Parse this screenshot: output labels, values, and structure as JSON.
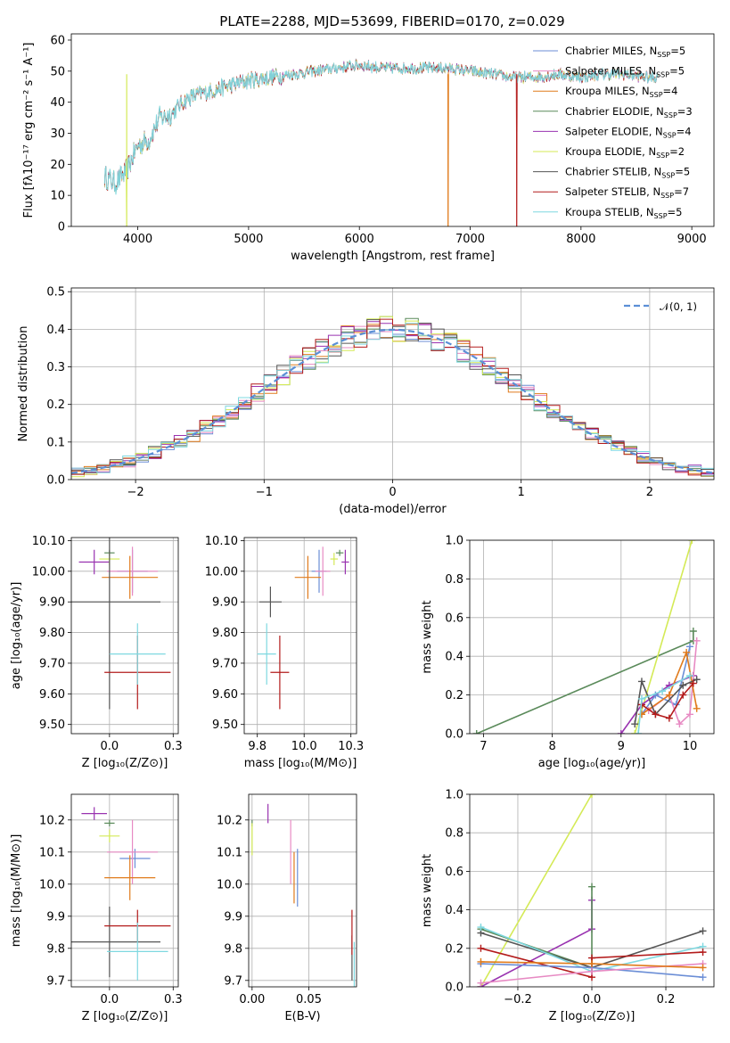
{
  "figure": {
    "title": "PLATE=2288, MJD=53699, FIBERID=0170, z=0.029"
  },
  "colors": {
    "Chabrier MILES": "#6b8ed6",
    "Salpeter MILES": "#e78ac3",
    "Kroupa MILES": "#e07b1c",
    "Chabrier ELODIE": "#5a8a5a",
    "Salpeter ELODIE": "#9932b0",
    "Kroupa ELODIE": "#d4ea56",
    "Chabrier STELIB": "#555555",
    "Salpeter STELIB": "#b31b1b",
    "Kroupa STELIB": "#7fd8e0",
    "gaussian": "#5b8fd6"
  },
  "chart_data": [
    {
      "id": "spectrum",
      "type": "line",
      "title": "PLATE=2288, MJD=53699, FIBERID=0170, z=0.029",
      "xlabel": "wavelength [Angstrom, rest frame]",
      "ylabel": "Flux [fλ10⁻¹⁷ erg cm⁻² s⁻¹ A⁻¹]",
      "xlim": [
        3400,
        9200
      ],
      "ylim": [
        0,
        62
      ],
      "xticks": [
        4000,
        5000,
        6000,
        7000,
        8000,
        9000
      ],
      "yticks": [
        0,
        10,
        20,
        30,
        40,
        50,
        60
      ],
      "grid": false,
      "legend_position": "top-right",
      "continuum": {
        "x": [
          3700,
          3800,
          3900,
          4000,
          4100,
          4200,
          4300,
          4400,
          4500,
          4600,
          4800,
          5000,
          5200,
          5400,
          5600,
          5800,
          6000,
          6200,
          6400,
          6600,
          6800,
          7000,
          7200,
          7400,
          7600,
          7800,
          8000,
          8200,
          8400,
          8600,
          8700
        ],
        "y": [
          16,
          14,
          18,
          26,
          28,
          35,
          36,
          40,
          42,
          43,
          45,
          47,
          48,
          49,
          50,
          51,
          52,
          51,
          51,
          51,
          51,
          50,
          49,
          48,
          48,
          49,
          48,
          49,
          49,
          48,
          48
        ]
      },
      "drops": [
        {
          "series": "Kroupa ELODIE",
          "x": 3900
        },
        {
          "series": "Kroupa MILES",
          "x": 6800
        },
        {
          "series": "Salpeter STELIB",
          "x": 7420
        }
      ],
      "series": [
        {
          "name": "Chabrier MILES, N",
          "sub": "SSP",
          "suffix": "=5",
          "key": "Chabrier MILES"
        },
        {
          "name": "Salpeter MILES, N",
          "sub": "SSP",
          "suffix": "=5",
          "key": "Salpeter MILES"
        },
        {
          "name": "Kroupa MILES, N",
          "sub": "SSP",
          "suffix": "=4",
          "key": "Kroupa MILES"
        },
        {
          "name": "Chabrier ELODIE, N",
          "sub": "SSP",
          "suffix": "=3",
          "key": "Chabrier ELODIE"
        },
        {
          "name": "Salpeter ELODIE, N",
          "sub": "SSP",
          "suffix": "=4",
          "key": "Salpeter ELODIE"
        },
        {
          "name": "Kroupa ELODIE, N",
          "sub": "SSP",
          "suffix": "=2",
          "key": "Kroupa ELODIE"
        },
        {
          "name": "Chabrier STELIB, N",
          "sub": "SSP",
          "suffix": "=5",
          "key": "Chabrier STELIB"
        },
        {
          "name": "Salpeter STELIB, N",
          "sub": "SSP",
          "suffix": "=7",
          "key": "Salpeter STELIB"
        },
        {
          "name": "Kroupa STELIB, N",
          "sub": "SSP",
          "suffix": "=5",
          "key": "Kroupa STELIB"
        }
      ]
    },
    {
      "id": "residuals",
      "type": "line",
      "xlabel": "(data-model)/error",
      "ylabel": "Normed distribution",
      "xlim": [
        -2.5,
        2.5
      ],
      "ylim": [
        0,
        0.51
      ],
      "xticks": [
        -2,
        -1,
        0,
        1,
        2
      ],
      "yticks": [
        0.0,
        0.1,
        0.2,
        0.3,
        0.4,
        0.5
      ],
      "grid": true,
      "legend_position": "top-right",
      "legend": "𝒩(0, 1)",
      "bin_width": 0.1,
      "bin_start": -2.5
    },
    {
      "id": "age-vs-Z",
      "type": "scatter",
      "xlabel": "Z [log₁₀(Z/Z⊙)]",
      "ylabel": "age  [log₁₀(age/yr)]",
      "xlim": [
        -0.15,
        0.27
      ],
      "ylim": [
        9.47,
        10.11
      ],
      "xticks": [
        0.0,
        0.25
      ],
      "yticks": [
        9.5,
        9.6,
        9.7,
        9.8,
        9.9,
        10.0,
        10.1
      ],
      "grid": true,
      "points": [
        {
          "key": "Chabrier MILES",
          "x": 0.09,
          "y": 10.0,
          "xerr": 0.06,
          "yerr": 0.07
        },
        {
          "key": "Salpeter MILES",
          "x": 0.09,
          "y": 10.0,
          "xerr": 0.1,
          "yerr": 0.08
        },
        {
          "key": "Kroupa MILES",
          "x": 0.08,
          "y": 9.98,
          "xerr": 0.11,
          "yerr": 0.07
        },
        {
          "key": "Chabrier ELODIE",
          "x": 0.0,
          "y": 10.06,
          "xerr": 0.02,
          "yerr": 0.01
        },
        {
          "key": "Salpeter ELODIE",
          "x": -0.06,
          "y": 10.03,
          "xerr": 0.06,
          "yerr": 0.04
        },
        {
          "key": "Kroupa ELODIE",
          "x": 0.0,
          "y": 10.04,
          "xerr": 0.04,
          "yerr": 0.02
        },
        {
          "key": "Chabrier STELIB",
          "x": 0.0,
          "y": 9.9,
          "xerr": 0.2,
          "yerr": 0.35
        },
        {
          "key": "Salpeter STELIB",
          "x": 0.11,
          "y": 9.67,
          "xerr": 0.13,
          "yerr": 0.12
        },
        {
          "key": "Kroupa STELIB",
          "x": 0.11,
          "y": 9.73,
          "xerr": 0.11,
          "yerr": 0.1
        }
      ]
    },
    {
      "id": "age-vs-mass",
      "type": "scatter",
      "xlabel": "mass [log₁₀(M/M⊙)]",
      "ylabel": "",
      "xlim": [
        9.68,
        10.28
      ],
      "ylim": [
        9.47,
        10.11
      ],
      "xticks": [
        9.75,
        10.0,
        10.25
      ],
      "yticks": [
        9.5,
        9.6,
        9.7,
        9.8,
        9.9,
        10.0,
        10.1
      ],
      "grid": true,
      "points": [
        {
          "key": "Chabrier MILES",
          "x": 10.08,
          "y": 10.0,
          "xerr": 0.04,
          "yerr": 0.07
        },
        {
          "key": "Salpeter MILES",
          "x": 10.1,
          "y": 10.0,
          "xerr": 0.04,
          "yerr": 0.08
        },
        {
          "key": "Kroupa MILES",
          "x": 10.02,
          "y": 9.98,
          "xerr": 0.07,
          "yerr": 0.07
        },
        {
          "key": "Chabrier ELODIE",
          "x": 10.19,
          "y": 10.06,
          "xerr": 0.02,
          "yerr": 0.01
        },
        {
          "key": "Salpeter ELODIE",
          "x": 10.22,
          "y": 10.03,
          "xerr": 0.02,
          "yerr": 0.04
        },
        {
          "key": "Kroupa ELODIE",
          "x": 10.16,
          "y": 10.04,
          "xerr": 0.02,
          "yerr": 0.02
        },
        {
          "key": "Chabrier STELIB",
          "x": 9.82,
          "y": 9.9,
          "xerr": 0.06,
          "yerr": 0.05
        },
        {
          "key": "Salpeter STELIB",
          "x": 9.87,
          "y": 9.67,
          "xerr": 0.05,
          "yerr": 0.12
        },
        {
          "key": "Kroupa STELIB",
          "x": 9.8,
          "y": 9.73,
          "xerr": 0.05,
          "yerr": 0.1
        }
      ]
    },
    {
      "id": "weight-vs-age",
      "type": "line",
      "xlabel": "age  [log₁₀(age/yr)]",
      "ylabel": "mass weight",
      "xlim": [
        6.8,
        10.35
      ],
      "ylim": [
        0,
        1.0
      ],
      "xticks": [
        7,
        8,
        9,
        10
      ],
      "yticks": [
        0.0,
        0.2,
        0.4,
        0.6,
        0.8,
        1.0
      ],
      "grid": true,
      "series": [
        {
          "key": "Chabrier ELODIE",
          "x": [
            6.9,
            10.05,
            10.05
          ],
          "y": [
            0.0,
            0.48,
            0.53
          ]
        },
        {
          "key": "Kroupa ELODIE",
          "x": [
            9.2,
            10.03
          ],
          "y": [
            0.0,
            1.0
          ]
        },
        {
          "key": "Salpeter ELODIE",
          "x": [
            9.0,
            9.3,
            9.7,
            10.05
          ],
          "y": [
            0.0,
            0.15,
            0.25,
            0.3
          ]
        },
        {
          "key": "Chabrier MILES",
          "x": [
            9.3,
            9.5,
            9.8,
            10.0
          ],
          "y": [
            0.1,
            0.2,
            0.15,
            0.45
          ]
        },
        {
          "key": "Salpeter MILES",
          "x": [
            9.4,
            9.7,
            9.85,
            10.0,
            10.1
          ],
          "y": [
            0.12,
            0.2,
            0.05,
            0.1,
            0.48
          ]
        },
        {
          "key": "Kroupa MILES",
          "x": [
            9.3,
            9.7,
            9.95,
            10.1
          ],
          "y": [
            0.1,
            0.2,
            0.42,
            0.13
          ]
        },
        {
          "key": "Chabrier STELIB",
          "x": [
            9.2,
            9.3,
            9.5,
            9.9,
            10.1
          ],
          "y": [
            0.05,
            0.27,
            0.1,
            0.25,
            0.28
          ]
        },
        {
          "key": "Salpeter STELIB",
          "x": [
            9.3,
            9.5,
            9.7,
            9.9,
            10.05
          ],
          "y": [
            0.15,
            0.1,
            0.08,
            0.2,
            0.26
          ]
        },
        {
          "key": "Kroupa STELIB",
          "x": [
            9.25,
            9.3,
            9.6,
            10.0
          ],
          "y": [
            0.0,
            0.18,
            0.22,
            0.3
          ]
        }
      ]
    },
    {
      "id": "mass-vs-Z",
      "type": "scatter",
      "xlabel": "Z [log₁₀(Z/Z⊙)]",
      "ylabel": "mass [log₁₀(M/M⊙)]",
      "xlim": [
        -0.15,
        0.27
      ],
      "ylim": [
        9.68,
        10.28
      ],
      "xticks": [
        0.0,
        0.25
      ],
      "yticks": [
        9.7,
        9.8,
        9.9,
        10.0,
        10.1,
        10.2
      ],
      "grid": true,
      "points": [
        {
          "key": "Chabrier MILES",
          "x": 0.1,
          "y": 10.08,
          "xerr": 0.06,
          "yerr": 0.03
        },
        {
          "key": "Salpeter MILES",
          "x": 0.09,
          "y": 10.1,
          "xerr": 0.1,
          "yerr": 0.1
        },
        {
          "key": "Kroupa MILES",
          "x": 0.08,
          "y": 10.02,
          "xerr": 0.1,
          "yerr": 0.07
        },
        {
          "key": "Chabrier ELODIE",
          "x": 0.0,
          "y": 10.19,
          "xerr": 0.02,
          "yerr": 0.01
        },
        {
          "key": "Salpeter ELODIE",
          "x": -0.06,
          "y": 10.22,
          "xerr": 0.05,
          "yerr": 0.02
        },
        {
          "key": "Kroupa ELODIE",
          "x": 0.0,
          "y": 10.15,
          "xerr": 0.04,
          "yerr": 0.02
        },
        {
          "key": "Chabrier STELIB",
          "x": 0.0,
          "y": 9.82,
          "xerr": 0.2,
          "yerr": 0.11
        },
        {
          "key": "Salpeter STELIB",
          "x": 0.11,
          "y": 9.87,
          "xerr": 0.13,
          "yerr": 0.05
        },
        {
          "key": "Kroupa STELIB",
          "x": 0.11,
          "y": 9.79,
          "xerr": 0.12,
          "yerr": 0.09
        }
      ]
    },
    {
      "id": "mass-vs-EBV",
      "type": "scatter",
      "xlabel": "E(B-V)",
      "ylabel": "",
      "xlim": [
        -0.003,
        0.092
      ],
      "ylim": [
        9.68,
        10.28
      ],
      "xticks": [
        0.0,
        0.05
      ],
      "yticks": [
        9.7,
        9.8,
        9.9,
        10.0,
        10.1,
        10.2
      ],
      "grid": true,
      "points": [
        {
          "key": "Chabrier MILES",
          "x": 0.04,
          "y": 10.02,
          "xerr": 0,
          "yerr": 0.09
        },
        {
          "key": "Salpeter MILES",
          "x": 0.034,
          "y": 10.1,
          "xerr": 0,
          "yerr": 0.1
        },
        {
          "key": "Kroupa MILES",
          "x": 0.037,
          "y": 10.02,
          "xerr": 0,
          "yerr": 0.08
        },
        {
          "key": "Chabrier ELODIE",
          "x": 0.0,
          "y": 10.19,
          "xerr": 0,
          "yerr": 0.01
        },
        {
          "key": "Salpeter ELODIE",
          "x": 0.014,
          "y": 10.22,
          "xerr": 0,
          "yerr": 0.03
        },
        {
          "key": "Kroupa ELODIE",
          "x": 0.0,
          "y": 10.14,
          "xerr": 0,
          "yerr": 0.05
        },
        {
          "key": "Chabrier STELIB",
          "x": 0.088,
          "y": 9.77,
          "xerr": 0,
          "yerr": 0.07
        },
        {
          "key": "Salpeter STELIB",
          "x": 0.088,
          "y": 9.85,
          "xerr": 0,
          "yerr": 0.07
        },
        {
          "key": "Kroupa STELIB",
          "x": 0.09,
          "y": 9.75,
          "xerr": 0,
          "yerr": 0.07
        }
      ]
    },
    {
      "id": "weight-vs-Z",
      "type": "line",
      "xlabel": "Z [log₁₀(Z/Z⊙)]",
      "ylabel": "mass weight",
      "xlim": [
        -0.33,
        0.33
      ],
      "ylim": [
        0,
        1.0
      ],
      "xticks": [
        -0.2,
        0.0,
        0.2
      ],
      "yticks": [
        0.0,
        0.2,
        0.4,
        0.6,
        0.8,
        1.0
      ],
      "grid": true,
      "series": [
        {
          "key": "Kroupa ELODIE",
          "x": [
            -0.3,
            0.0
          ],
          "y": [
            0.0,
            1.0
          ]
        },
        {
          "key": "Salpeter ELODIE",
          "x": [
            -0.3,
            0.0,
            0.0
          ],
          "y": [
            0.0,
            0.3,
            0.45
          ]
        },
        {
          "key": "Chabrier ELODIE",
          "x": [
            -0.3,
            0.0,
            0.0
          ],
          "y": [
            0.3,
            0.1,
            0.52
          ]
        },
        {
          "key": "Chabrier STELIB",
          "x": [
            -0.3,
            0.0,
            0.3
          ],
          "y": [
            0.28,
            0.1,
            0.29
          ]
        },
        {
          "key": "Kroupa STELIB",
          "x": [
            -0.3,
            0.0,
            0.3
          ],
          "y": [
            0.31,
            0.08,
            0.21
          ]
        },
        {
          "key": "Salpeter STELIB",
          "x": [
            -0.3,
            0.0,
            0.0,
            0.3
          ],
          "y": [
            0.2,
            0.05,
            0.15,
            0.18
          ]
        },
        {
          "key": "Chabrier MILES",
          "x": [
            -0.3,
            0.0,
            0.3
          ],
          "y": [
            0.12,
            0.1,
            0.05
          ]
        },
        {
          "key": "Salpeter MILES",
          "x": [
            -0.3,
            0.0,
            0.3
          ],
          "y": [
            0.02,
            0.08,
            0.12
          ]
        },
        {
          "key": "Kroupa MILES",
          "x": [
            -0.3,
            0.0,
            0.3
          ],
          "y": [
            0.13,
            0.12,
            0.1
          ]
        }
      ]
    }
  ]
}
